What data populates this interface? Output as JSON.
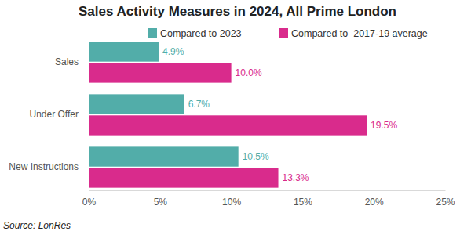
{
  "chart_data": {
    "type": "bar",
    "orientation": "horizontal",
    "title": "Sales Activity Measures in 2024, All Prime London",
    "categories": [
      "Sales",
      "Under Offer",
      "New Instructions"
    ],
    "series": [
      {
        "name": "Compared to 2023",
        "color": "#52ada9",
        "values": [
          4.9,
          6.7,
          10.5
        ],
        "value_labels": [
          "4.9%",
          "6.7%",
          "10.5%"
        ]
      },
      {
        "name": "Compared to  2017-19 average",
        "color": "#d92b8c",
        "values": [
          10.0,
          19.5,
          13.3
        ],
        "value_labels": [
          "10.0%",
          "19.5%",
          "13.3%"
        ]
      }
    ],
    "xlim": [
      0,
      25
    ],
    "xticks": [
      {
        "value": 0,
        "label": "0%"
      },
      {
        "value": 5,
        "label": "5%"
      },
      {
        "value": 10,
        "label": "10%"
      },
      {
        "value": 15,
        "label": "15%"
      },
      {
        "value": 20,
        "label": "20%"
      },
      {
        "value": 25,
        "label": "25%"
      }
    ],
    "grid": false,
    "legend": "top",
    "data_labels": true,
    "annotations": [
      "Source: LonRes"
    ]
  }
}
